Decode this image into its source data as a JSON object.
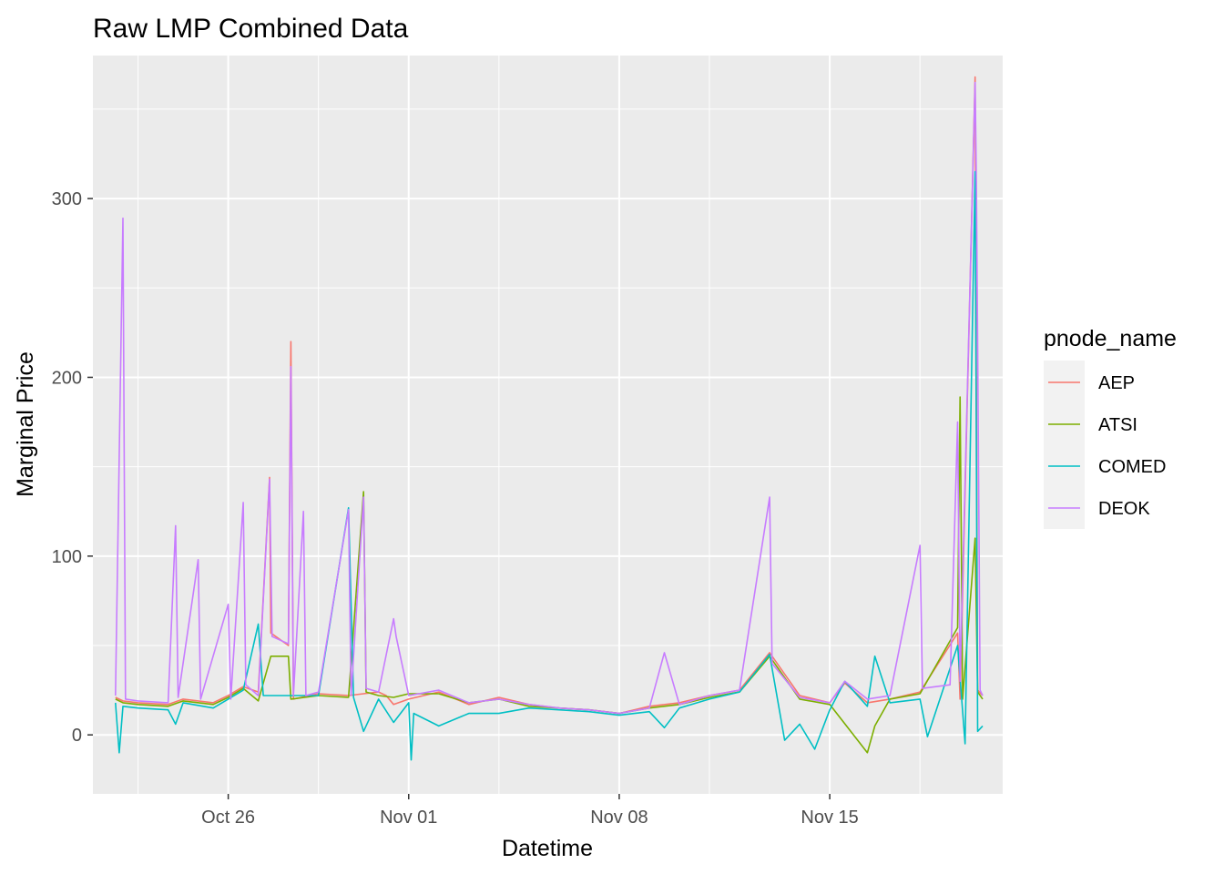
{
  "chart_data": {
    "type": "line",
    "title": "Raw LMP Combined Data",
    "xlabel": "Datetime",
    "ylabel": "Marginal Price",
    "x_type": "date",
    "xlim": [
      "2024-10-21T12:00",
      "2024-11-20T18:00"
    ],
    "ylim": [
      -33,
      380
    ],
    "x_ticks": [
      {
        "label": "Oct 26",
        "value": "2024-10-26T00:00"
      },
      {
        "label": "Nov 01",
        "value": "2024-11-01T00:00"
      },
      {
        "label": "Nov 08",
        "value": "2024-11-08T00:00"
      },
      {
        "label": "Nov 15",
        "value": "2024-11-15T00:00"
      }
    ],
    "y_ticks": [
      0,
      100,
      200,
      300
    ],
    "grid": true,
    "legend": {
      "title": "pnode_name",
      "position": "right"
    },
    "series": [
      {
        "name": "AEP",
        "color": "#F8766D",
        "points": [
          [
            "2024-10-22T06:00",
            21
          ],
          [
            "2024-10-22T12:00",
            19
          ],
          [
            "2024-10-23T00:00",
            18
          ],
          [
            "2024-10-24T00:00",
            17
          ],
          [
            "2024-10-24T12:00",
            20
          ],
          [
            "2024-10-25T12:00",
            18
          ],
          [
            "2024-10-26T00:00",
            22
          ],
          [
            "2024-10-26T12:00",
            27
          ],
          [
            "2024-10-27T00:00",
            24
          ],
          [
            "2024-10-27T09:00",
            144
          ],
          [
            "2024-10-27T10:00",
            57
          ],
          [
            "2024-10-28T00:00",
            50
          ],
          [
            "2024-10-28T02:00",
            220
          ],
          [
            "2024-10-28T04:00",
            20
          ],
          [
            "2024-10-29T00:00",
            23
          ],
          [
            "2024-10-30T00:00",
            22
          ],
          [
            "2024-10-30T12:00",
            23
          ],
          [
            "2024-10-31T00:00",
            24
          ],
          [
            "2024-10-31T06:00",
            22
          ],
          [
            "2024-10-31T12:00",
            17
          ],
          [
            "2024-11-01T00:00",
            20
          ],
          [
            "2024-11-02T00:00",
            24
          ],
          [
            "2024-11-03T00:00",
            17
          ],
          [
            "2024-11-04T00:00",
            21
          ],
          [
            "2024-11-05T00:00",
            17
          ],
          [
            "2024-11-06T00:00",
            15
          ],
          [
            "2024-11-07T00:00",
            14
          ],
          [
            "2024-11-08T00:00",
            12
          ],
          [
            "2024-11-09T00:00",
            16
          ],
          [
            "2024-11-10T00:00",
            18
          ],
          [
            "2024-11-11T00:00",
            22
          ],
          [
            "2024-11-12T00:00",
            25
          ],
          [
            "2024-11-13T00:00",
            46
          ],
          [
            "2024-11-14T00:00",
            22
          ],
          [
            "2024-11-15T00:00",
            18
          ],
          [
            "2024-11-15T12:00",
            29
          ],
          [
            "2024-11-16T06:00",
            18
          ],
          [
            "2024-11-17T00:00",
            20
          ],
          [
            "2024-11-18T00:00",
            24
          ],
          [
            "2024-11-19T06:00",
            57
          ],
          [
            "2024-11-19T08:00",
            20
          ],
          [
            "2024-11-19T20:00",
            368
          ],
          [
            "2024-11-19T22:00",
            25
          ],
          [
            "2024-11-20T02:00",
            22
          ]
        ]
      },
      {
        "name": "ATSI",
        "color": "#7CAE00",
        "points": [
          [
            "2024-10-22T06:00",
            20
          ],
          [
            "2024-10-22T12:00",
            18
          ],
          [
            "2024-10-23T00:00",
            17
          ],
          [
            "2024-10-24T00:00",
            16
          ],
          [
            "2024-10-24T12:00",
            19
          ],
          [
            "2024-10-25T12:00",
            17
          ],
          [
            "2024-10-26T00:00",
            21
          ],
          [
            "2024-10-26T12:00",
            26
          ],
          [
            "2024-10-27T00:00",
            19
          ],
          [
            "2024-10-27T10:00",
            44
          ],
          [
            "2024-10-28T00:00",
            44
          ],
          [
            "2024-10-28T02:00",
            20
          ],
          [
            "2024-10-29T00:00",
            22
          ],
          [
            "2024-10-30T00:00",
            21
          ],
          [
            "2024-10-30T12:00",
            136
          ],
          [
            "2024-10-30T14:00",
            24
          ],
          [
            "2024-10-31T00:00",
            22
          ],
          [
            "2024-10-31T12:00",
            21
          ],
          [
            "2024-11-01T00:00",
            23
          ],
          [
            "2024-11-02T00:00",
            23
          ],
          [
            "2024-11-03T00:00",
            18
          ],
          [
            "2024-11-04T00:00",
            20
          ],
          [
            "2024-11-05T00:00",
            16
          ],
          [
            "2024-11-06T00:00",
            15
          ],
          [
            "2024-11-07T00:00",
            14
          ],
          [
            "2024-11-08T00:00",
            12
          ],
          [
            "2024-11-09T00:00",
            15
          ],
          [
            "2024-11-10T00:00",
            17
          ],
          [
            "2024-11-11T00:00",
            21
          ],
          [
            "2024-11-12T00:00",
            24
          ],
          [
            "2024-11-13T00:00",
            44
          ],
          [
            "2024-11-14T00:00",
            20
          ],
          [
            "2024-11-15T00:00",
            17
          ],
          [
            "2024-11-16T06:00",
            -10
          ],
          [
            "2024-11-16T12:00",
            5
          ],
          [
            "2024-11-17T00:00",
            20
          ],
          [
            "2024-11-18T00:00",
            23
          ],
          [
            "2024-11-19T06:00",
            60
          ],
          [
            "2024-11-19T08:00",
            189
          ],
          [
            "2024-11-19T10:00",
            20
          ],
          [
            "2024-11-19T20:00",
            110
          ],
          [
            "2024-11-19T22:00",
            24
          ],
          [
            "2024-11-20T02:00",
            20
          ]
        ]
      },
      {
        "name": "COMED",
        "color": "#00BFC4",
        "points": [
          [
            "2024-10-22T06:00",
            18
          ],
          [
            "2024-10-22T09:00",
            -10
          ],
          [
            "2024-10-22T12:00",
            16
          ],
          [
            "2024-10-23T00:00",
            15
          ],
          [
            "2024-10-24T00:00",
            14
          ],
          [
            "2024-10-24T06:00",
            6
          ],
          [
            "2024-10-24T12:00",
            18
          ],
          [
            "2024-10-25T12:00",
            15
          ],
          [
            "2024-10-26T00:00",
            20
          ],
          [
            "2024-10-26T12:00",
            25
          ],
          [
            "2024-10-27T00:00",
            62
          ],
          [
            "2024-10-27T04:00",
            22
          ],
          [
            "2024-10-28T00:00",
            22
          ],
          [
            "2024-10-29T00:00",
            22
          ],
          [
            "2024-10-30T00:00",
            127
          ],
          [
            "2024-10-30T04:00",
            21
          ],
          [
            "2024-10-30T12:00",
            2
          ],
          [
            "2024-10-31T00:00",
            20
          ],
          [
            "2024-10-31T12:00",
            7
          ],
          [
            "2024-11-01T00:00",
            18
          ],
          [
            "2024-11-01T02:00",
            -14
          ],
          [
            "2024-11-01T04:00",
            12
          ],
          [
            "2024-11-02T00:00",
            5
          ],
          [
            "2024-11-03T00:00",
            12
          ],
          [
            "2024-11-04T00:00",
            12
          ],
          [
            "2024-11-05T00:00",
            15
          ],
          [
            "2024-11-06T00:00",
            14
          ],
          [
            "2024-11-07T00:00",
            13
          ],
          [
            "2024-11-08T00:00",
            11
          ],
          [
            "2024-11-09T00:00",
            13
          ],
          [
            "2024-11-09T12:00",
            4
          ],
          [
            "2024-11-10T00:00",
            15
          ],
          [
            "2024-11-11T00:00",
            20
          ],
          [
            "2024-11-12T00:00",
            24
          ],
          [
            "2024-11-13T00:00",
            45
          ],
          [
            "2024-11-13T12:00",
            -3
          ],
          [
            "2024-11-14T00:00",
            6
          ],
          [
            "2024-11-14T12:00",
            -8
          ],
          [
            "2024-11-15T00:00",
            14
          ],
          [
            "2024-11-15T12:00",
            30
          ],
          [
            "2024-11-16T06:00",
            16
          ],
          [
            "2024-11-16T12:00",
            44
          ],
          [
            "2024-11-17T00:00",
            18
          ],
          [
            "2024-11-18T00:00",
            20
          ],
          [
            "2024-11-18T06:00",
            -1
          ],
          [
            "2024-11-19T06:00",
            50
          ],
          [
            "2024-11-19T12:00",
            -5
          ],
          [
            "2024-11-19T20:00",
            315
          ],
          [
            "2024-11-19T22:00",
            2
          ],
          [
            "2024-11-20T02:00",
            5
          ]
        ]
      },
      {
        "name": "DEOK",
        "color": "#C77CFF",
        "points": [
          [
            "2024-10-22T06:00",
            22
          ],
          [
            "2024-10-22T12:00",
            289
          ],
          [
            "2024-10-22T14:00",
            20
          ],
          [
            "2024-10-23T00:00",
            19
          ],
          [
            "2024-10-24T00:00",
            18
          ],
          [
            "2024-10-24T06:00",
            117
          ],
          [
            "2024-10-24T08:00",
            21
          ],
          [
            "2024-10-25T00:00",
            98
          ],
          [
            "2024-10-25T02:00",
            20
          ],
          [
            "2024-10-26T00:00",
            73
          ],
          [
            "2024-10-26T02:00",
            20
          ],
          [
            "2024-10-26T12:00",
            130
          ],
          [
            "2024-10-26T14:00",
            28
          ],
          [
            "2024-10-27T00:00",
            22
          ],
          [
            "2024-10-27T09:00",
            143
          ],
          [
            "2024-10-27T11:00",
            55
          ],
          [
            "2024-10-28T00:00",
            51
          ],
          [
            "2024-10-28T02:00",
            206
          ],
          [
            "2024-10-28T04:00",
            22
          ],
          [
            "2024-10-28T12:00",
            125
          ],
          [
            "2024-10-28T14:00",
            22
          ],
          [
            "2024-10-29T00:00",
            24
          ],
          [
            "2024-10-30T00:00",
            126
          ],
          [
            "2024-10-30T02:00",
            22
          ],
          [
            "2024-10-30T12:00",
            133
          ],
          [
            "2024-10-30T14:00",
            26
          ],
          [
            "2024-10-31T00:00",
            24
          ],
          [
            "2024-10-31T12:00",
            65
          ],
          [
            "2024-10-31T14:00",
            55
          ],
          [
            "2024-11-01T00:00",
            22
          ],
          [
            "2024-11-02T00:00",
            25
          ],
          [
            "2024-11-03T00:00",
            18
          ],
          [
            "2024-11-04T00:00",
            20
          ],
          [
            "2024-11-05T00:00",
            17
          ],
          [
            "2024-11-06T00:00",
            15
          ],
          [
            "2024-11-07T00:00",
            14
          ],
          [
            "2024-11-08T00:00",
            12
          ],
          [
            "2024-11-09T00:00",
            15
          ],
          [
            "2024-11-09T12:00",
            46
          ],
          [
            "2024-11-10T00:00",
            17
          ],
          [
            "2024-11-11T00:00",
            22
          ],
          [
            "2024-11-12T00:00",
            25
          ],
          [
            "2024-11-13T00:00",
            133
          ],
          [
            "2024-11-13T02:00",
            40
          ],
          [
            "2024-11-14T00:00",
            21
          ],
          [
            "2024-11-15T00:00",
            18
          ],
          [
            "2024-11-15T12:00",
            30
          ],
          [
            "2024-11-16T06:00",
            20
          ],
          [
            "2024-11-17T00:00",
            22
          ],
          [
            "2024-11-18T00:00",
            106
          ],
          [
            "2024-11-18T02:00",
            26
          ],
          [
            "2024-11-19T00:00",
            28
          ],
          [
            "2024-11-19T06:00",
            175
          ],
          [
            "2024-11-19T08:00",
            30
          ],
          [
            "2024-11-19T20:00",
            365
          ],
          [
            "2024-11-19T21:00",
            310
          ],
          [
            "2024-11-19T22:00",
            219
          ],
          [
            "2024-11-20T00:00",
            25
          ],
          [
            "2024-11-20T02:00",
            22
          ]
        ]
      }
    ]
  }
}
